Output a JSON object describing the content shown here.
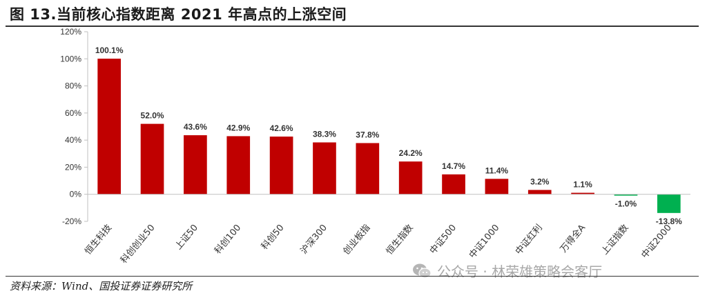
{
  "title": "图 13.当前核心指数距离 2021 年高点的上涨空间",
  "source": "资料来源：Wind、国投证券证券研究所",
  "watermark": {
    "icon": "wechat-icon",
    "text": "公众号 · 林荣雄策略会客厅"
  },
  "colors": {
    "positive": "#c00000",
    "negative": "#00b050"
  },
  "chart_data": {
    "type": "bar",
    "title": "",
    "xlabel": "",
    "ylabel": "",
    "ylim": [
      -20,
      120
    ],
    "yticks": [
      -20,
      0,
      20,
      40,
      60,
      80,
      100,
      120
    ],
    "ytick_labels": [
      "-20%",
      "0%",
      "20%",
      "40%",
      "60%",
      "80%",
      "100%",
      "120%"
    ],
    "grid": false,
    "categories": [
      "恒生科技",
      "科创创业50",
      "上证50",
      "科创100",
      "科创50",
      "沪深300",
      "创业板指",
      "恒生指数",
      "中证500",
      "中证1000",
      "中证红利",
      "万得全A",
      "上证指数",
      "中证2000"
    ],
    "values": [
      100.1,
      52.0,
      43.6,
      42.9,
      42.6,
      38.3,
      37.8,
      24.2,
      14.7,
      11.4,
      3.2,
      1.1,
      -1.0,
      -13.8
    ],
    "value_labels": [
      "100.1%",
      "52.0%",
      "43.6%",
      "42.9%",
      "42.6%",
      "38.3%",
      "37.8%",
      "24.2%",
      "14.7%",
      "11.4%",
      "3.2%",
      "1.1%",
      "-1.0%",
      "-13.8%"
    ]
  }
}
